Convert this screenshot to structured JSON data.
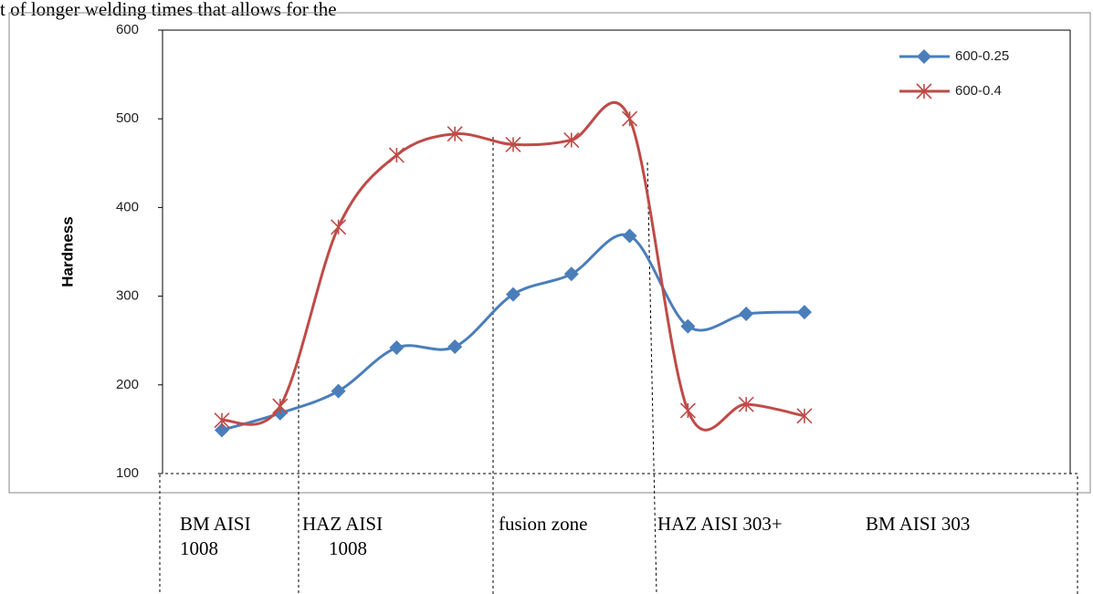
{
  "text_fragment": "t of longer welding times that allows for the",
  "chart_data": {
    "type": "line",
    "categories": [
      null,
      null,
      null,
      null,
      null,
      null,
      null,
      null,
      null,
      null,
      null
    ],
    "y_label": "Hardness",
    "ylim": [
      100,
      600
    ],
    "yticks": [
      100,
      200,
      300,
      400,
      500,
      600
    ],
    "legend": "top-right",
    "series": [
      {
        "name": "600-0.25",
        "color": "#4a7ebb",
        "marker": "diamond",
        "values": [
          149,
          168,
          193,
          242,
          243,
          302,
          325,
          368,
          266,
          280,
          282
        ]
      },
      {
        "name": "600-0.4",
        "color": "#be4b48",
        "marker": "star",
        "values": [
          160,
          176,
          378,
          459,
          483,
          471,
          476,
          500,
          171,
          178,
          165
        ]
      }
    ],
    "zones": [
      "BM AISI 1008",
      "HAZ AISI 1008",
      "fusion zone",
      "HAZ AISI 303+",
      "BM AISI 303"
    ]
  }
}
